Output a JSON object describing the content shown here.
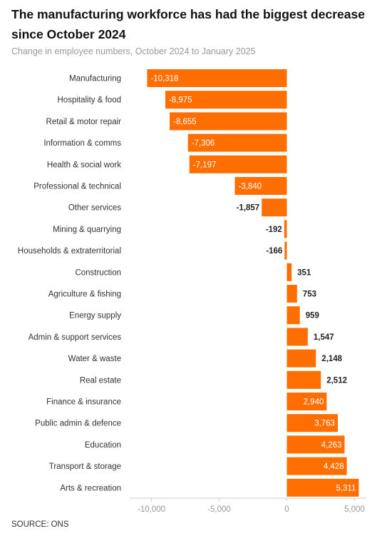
{
  "header": {
    "title": "The manufacturing workforce has had the biggest decrease since October 2024",
    "subtitle": "Change in employee numbers, October 2024 to January 2025"
  },
  "footer": {
    "source": "SOURCE: ONS"
  },
  "colors": {
    "bar": "#ff6e00",
    "axis": "#cccccc",
    "tick_text": "#999999"
  },
  "chart_data": {
    "type": "bar",
    "orientation": "horizontal",
    "title": "The manufacturing workforce has had the biggest decrease since October 2024",
    "subtitle": "Change in employee numbers, October 2024 to January 2025",
    "xlabel": "",
    "ylabel": "",
    "xlim": [
      -12000,
      6000
    ],
    "xticks": [
      -10000,
      -5000,
      0,
      5000
    ],
    "xtick_labels": [
      "-10,000",
      "-5,000",
      "0",
      "5,000"
    ],
    "grid": false,
    "categories": [
      "Manufacturing",
      "Hospitality & food",
      "Retail & motor repair",
      "Information & comms",
      "Health & social work",
      "Professional & technical",
      "Other services",
      "Mining & quarrying",
      "Households & extraterritorial",
      "Construction",
      "Agriculture & fishing",
      "Energy supply",
      "Admin & support services",
      "Water & waste",
      "Real estate",
      "Finance & insurance",
      "Public admin & defence",
      "Education",
      "Transport & storage",
      "Arts & recreation"
    ],
    "values": [
      -10318,
      -8975,
      -8655,
      -7306,
      -7197,
      -3840,
      -1857,
      -192,
      -166,
      351,
      753,
      959,
      1547,
      2148,
      2512,
      2940,
      3763,
      4263,
      4428,
      5311
    ],
    "value_labels": [
      "-10,318",
      "-8,975",
      "-8,655",
      "-7,306",
      "-7,197",
      "-3,840",
      "-1,857",
      "-192",
      "-166",
      "351",
      "753",
      "959",
      "1,547",
      "2,148",
      "2,512",
      "2,940",
      "3,763",
      "4,263",
      "4,428",
      "5,311"
    ]
  }
}
